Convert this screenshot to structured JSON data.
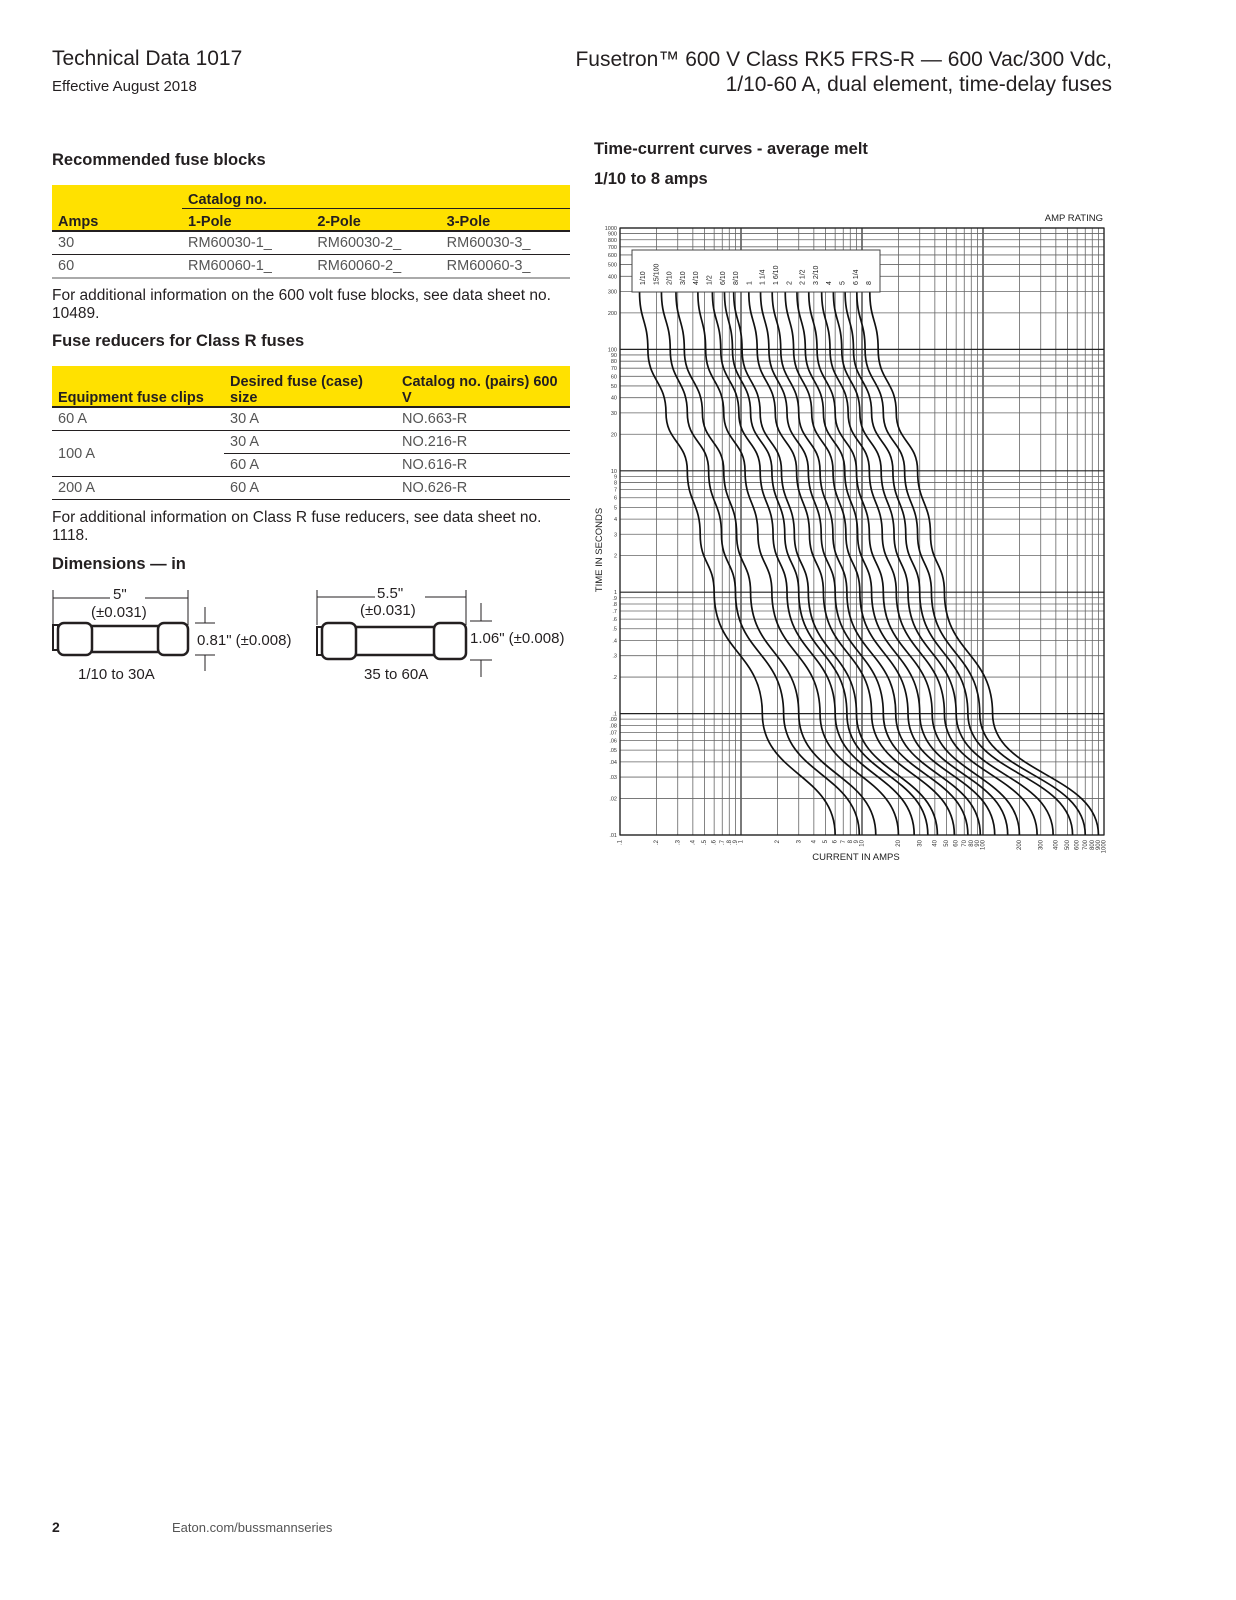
{
  "header": {
    "doc": "Technical Data 1017",
    "date": "Effective August 2018",
    "title_line1": "Fusetron™  600 V Class RK5 FRS-R — 600 Vac/300 Vdc,",
    "title_line2": "1/10-60 A, dual element, time-delay fuses"
  },
  "blocks": {
    "heading": "Recommended fuse blocks",
    "group_header": "Catalog no.",
    "columns": [
      "Amps",
      "1-Pole",
      "2-Pole",
      "3-Pole"
    ],
    "rows": [
      [
        "30",
        "RM60030-1_",
        "RM60030-2_",
        "RM60030-3_"
      ],
      [
        "60",
        "RM60060-1_",
        "RM60060-2_",
        "RM60060-3_"
      ]
    ],
    "note": "For additional information on the 600 volt fuse blocks, see data sheet no. 10489."
  },
  "reducers": {
    "heading": "Fuse reducers for Class R fuses",
    "columns": [
      "Equipment fuse clips",
      "Desired fuse (case) size",
      "Catalog no. (pairs) 600 V"
    ],
    "rows": [
      [
        "60 A",
        "30 A",
        "NO.663-R"
      ],
      [
        "100 A",
        "30 A",
        "NO.216-R"
      ],
      [
        "",
        "60 A",
        "NO.616-R"
      ],
      [
        "200 A",
        "60 A",
        "NO.626-R"
      ]
    ],
    "note": "For additional information on Class R fuse reducers, see data sheet no. 1118."
  },
  "dimensions": {
    "heading": "Dimensions — in",
    "small": {
      "length": "5\"",
      "length_tol": "(±0.031)",
      "dia": "0.81\" (±0.008)",
      "range": "1/10 to 30A"
    },
    "large": {
      "length": "5.5\"",
      "length_tol": "(±0.031)",
      "dia": "1.06\" (±0.008)",
      "range": "35 to 60A"
    }
  },
  "chart": {
    "heading": "Time-current curves - average melt",
    "subheading": "1/10 to 8 amps"
  },
  "chart_data": {
    "type": "line",
    "xlabel": "CURRENT IN AMPS",
    "ylabel": "TIME IN SECONDS",
    "legend_title": "AMP RATING",
    "x_scale": "log",
    "y_scale": "log",
    "xlim": [
      0.1,
      1000
    ],
    "ylim": [
      0.01,
      1000
    ],
    "grid": true,
    "x_ticks": [
      ".1",
      ".2",
      ".3",
      ".4",
      ".5",
      ".6",
      ".7",
      ".8",
      ".9",
      "1",
      "2",
      "3",
      "4",
      "5",
      "6",
      "7",
      "8",
      "9",
      "10",
      "20",
      "30",
      "40",
      "50",
      "60",
      "70",
      "80",
      "90",
      "100",
      "200",
      "300",
      "400",
      "500",
      "600",
      "700",
      "800",
      "900",
      "1000"
    ],
    "y_ticks": [
      ".01",
      ".02",
      ".03",
      ".04",
      ".05",
      ".06",
      ".07",
      ".08",
      ".09",
      ".1",
      ".2",
      ".3",
      ".4",
      ".5",
      ".6",
      ".7",
      ".8",
      ".9",
      "1",
      "2",
      "3",
      "4",
      "5",
      "6",
      "7",
      "8",
      "9",
      "10",
      "20",
      "30",
      "40",
      "50",
      "60",
      "70",
      "80",
      "90",
      "100",
      "200",
      "300",
      "400",
      "500",
      "600",
      "700",
      "800",
      "900",
      "1000"
    ],
    "y_seconds": [
      300,
      100,
      30,
      10,
      3,
      1,
      0.1,
      0.01
    ],
    "series": [
      {
        "name": "1/10",
        "x_amps": [
          0.145,
          0.17,
          0.24,
          0.36,
          0.46,
          0.6,
          1.5,
          6
        ]
      },
      {
        "name": "15/100",
        "x_amps": [
          0.22,
          0.26,
          0.36,
          0.54,
          0.69,
          0.9,
          2.25,
          9.5
        ]
      },
      {
        "name": "2/10",
        "x_amps": [
          0.29,
          0.34,
          0.48,
          0.72,
          0.92,
          1.2,
          3,
          13
        ]
      },
      {
        "name": "3/10",
        "x_amps": [
          0.44,
          0.51,
          0.72,
          1.08,
          1.38,
          1.8,
          4.5,
          20
        ]
      },
      {
        "name": "4/10",
        "x_amps": [
          0.58,
          0.68,
          0.96,
          1.44,
          1.84,
          2.4,
          6,
          27
        ]
      },
      {
        "name": "1/2",
        "x_amps": [
          0.73,
          0.85,
          1.2,
          1.8,
          2.3,
          3,
          7.5,
          35
        ]
      },
      {
        "name": "6/10",
        "x_amps": [
          0.87,
          1.02,
          1.44,
          2.16,
          2.76,
          3.6,
          9,
          42
        ]
      },
      {
        "name": "8/10",
        "x_amps": [
          1.16,
          1.36,
          1.92,
          2.88,
          3.68,
          4.8,
          12,
          58
        ]
      },
      {
        "name": "1",
        "x_amps": [
          1.45,
          1.7,
          2.4,
          3.6,
          4.6,
          6,
          15,
          75
        ]
      },
      {
        "name": "1 1/4",
        "x_amps": [
          1.81,
          2.13,
          3,
          4.5,
          5.75,
          7.5,
          19,
          95
        ]
      },
      {
        "name": "1 6/10",
        "x_amps": [
          2.32,
          2.72,
          3.84,
          5.76,
          7.36,
          9.6,
          24,
          125
        ]
      },
      {
        "name": "2",
        "x_amps": [
          2.9,
          3.4,
          4.8,
          7.2,
          9.2,
          12,
          30,
          160
        ]
      },
      {
        "name": "2 1/2",
        "x_amps": [
          3.63,
          4.25,
          6,
          9,
          11.5,
          15,
          38,
          200
        ]
      },
      {
        "name": "3 2/10",
        "x_amps": [
          4.64,
          5.44,
          7.68,
          11.5,
          14.7,
          19.2,
          48,
          280
        ]
      },
      {
        "name": "4",
        "x_amps": [
          5.8,
          6.8,
          9.6,
          14.4,
          18.4,
          24,
          60,
          380
        ]
      },
      {
        "name": "5",
        "x_amps": [
          7.25,
          8.5,
          12,
          18,
          23,
          30,
          75,
          550
        ]
      },
      {
        "name": "6 1/4",
        "x_amps": [
          9.06,
          10.6,
          15,
          22.5,
          28.8,
          37.5,
          94,
          700
        ]
      },
      {
        "name": "8",
        "x_amps": [
          11.6,
          13.6,
          19.2,
          28.8,
          36.8,
          48,
          120,
          900
        ]
      }
    ]
  },
  "footer": {
    "page": "2",
    "site": "Eaton.com/bussmannseries"
  }
}
